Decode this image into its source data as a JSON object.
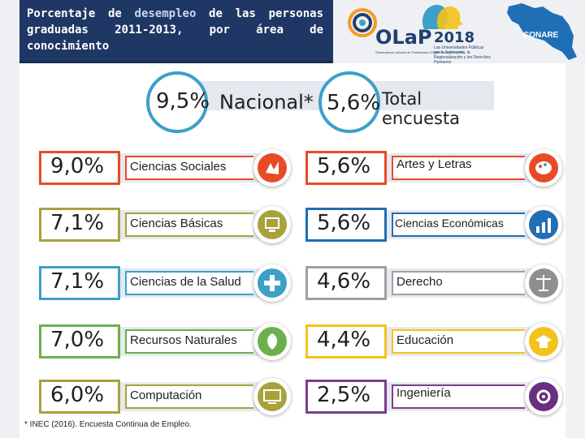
{
  "header": {
    "title_part1": "Porcentaje de ",
    "title_highlight": "desempleo",
    "title_part2": " de las personas graduadas 2011-2013, por área de conocimiento"
  },
  "logos": {
    "olap": "OLaP",
    "olap_sub": "Observatorio Laboral de Profesiones CONARE • OCES • REC",
    "year": "2018",
    "year_sub": "Las Universidades Públicas por la Autonomía, la Regionalización y los Derechos Humanos",
    "conare": "CONARE"
  },
  "national": {
    "nacional_value": "9,5%",
    "nacional_label": "Nacional*",
    "total_value": "5,6%",
    "total_label": "Total encuesta"
  },
  "colors": {
    "orange": "#e94a26",
    "olive": "#a8a23c",
    "cyan": "#3ca0c8",
    "green": "#6cb04b",
    "yellow": "#f3c21b",
    "navy": "#1f3764"
  },
  "areas": [
    {
      "value": "9,0%",
      "label": "Ciencias Sociales",
      "icon": "social-sciences-icon"
    },
    {
      "value": "5,6%",
      "label": "Artes y Letras",
      "icon": "arts-palette-icon"
    },
    {
      "value": "7,1%",
      "label": "Ciencias Básicas",
      "icon": "basic-sciences-icon"
    },
    {
      "value": "5,6%",
      "label": "Ciencias Económicas",
      "icon": "economics-chart-icon"
    },
    {
      "value": "7,1%",
      "label": "Ciencias de la Salud",
      "icon": "health-icon"
    },
    {
      "value": "4,6%",
      "label": "Derecho",
      "icon": "law-scales-icon"
    },
    {
      "value": "7,0%",
      "label": "Recursos Naturales",
      "icon": "natural-resources-icon"
    },
    {
      "value": "4,4%",
      "label": "Educación",
      "icon": "education-icon"
    },
    {
      "value": "6,0%",
      "label": "Computación",
      "icon": "computer-icon"
    },
    {
      "value": "2,5%",
      "label": "Ingeniería",
      "icon": "engineering-gear-icon"
    }
  ],
  "footnote": "* INEC (2016). Encuesta Continua de Empleo."
}
